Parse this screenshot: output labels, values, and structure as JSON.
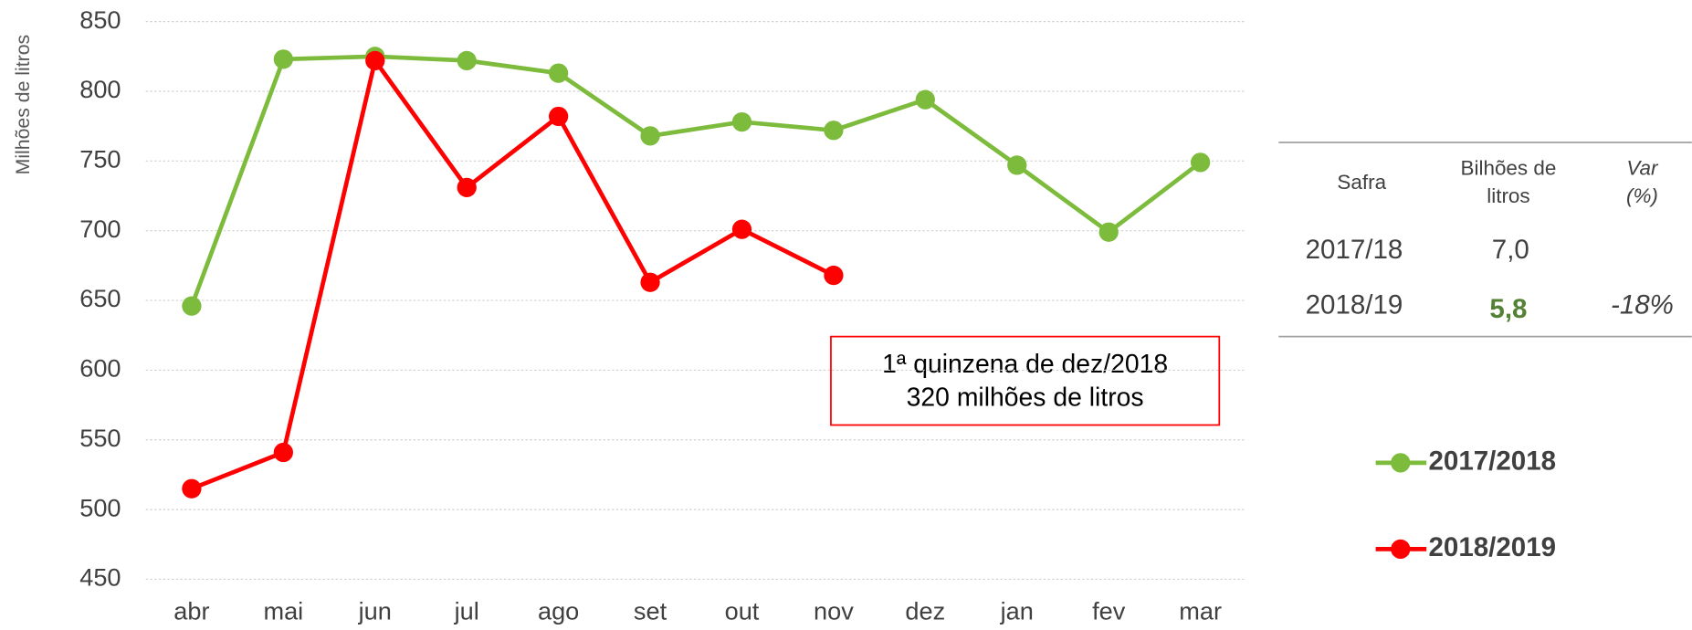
{
  "chart_data": {
    "type": "line",
    "y_label": "Milhões de litros",
    "categories": [
      "abr",
      "mai",
      "jun",
      "jul",
      "ago",
      "set",
      "out",
      "nov",
      "dez",
      "jan",
      "fev",
      "mar"
    ],
    "series": [
      {
        "name": "2017/2018",
        "color": "#7dbb3c",
        "values": [
          646,
          823,
          825,
          822,
          813,
          768,
          778,
          772,
          794,
          747,
          699,
          749
        ]
      },
      {
        "name": "2018/2019",
        "color": "#ff0000",
        "values": [
          515,
          541,
          822,
          731,
          782,
          663,
          701,
          668,
          null,
          null,
          null,
          null
        ]
      }
    ],
    "ylim": [
      450,
      850
    ],
    "yticks": [
      450,
      500,
      550,
      600,
      650,
      700,
      750,
      800,
      850
    ],
    "grid": true,
    "annotation": [
      "1ª quinzena de dez/2018",
      "320 milhões de litros"
    ]
  },
  "table": {
    "header": [
      "Safra",
      [
        "Bilhões de",
        "litros"
      ],
      [
        "Var",
        "(%)"
      ]
    ],
    "rows": [
      [
        "2017/18",
        "7,0"
      ],
      [
        "2018/19",
        "5,8",
        "-18%"
      ]
    ]
  }
}
